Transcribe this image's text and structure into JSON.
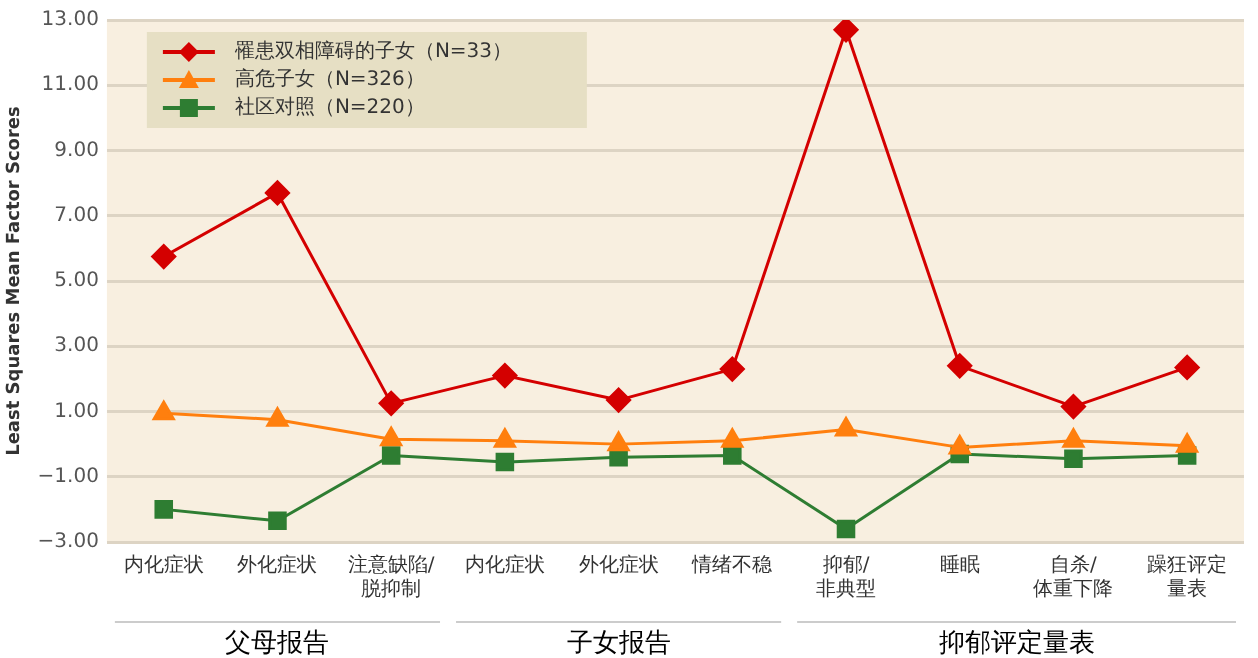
{
  "chart_data": {
    "type": "line",
    "ylabel": "Least Squares Mean Factor Scores",
    "categories": [
      "内化症状",
      "外化症状",
      "注意缺陷/脱抑制",
      "内化症状",
      "外化症状",
      "情绪不稳",
      "抑郁/非典型",
      "睡眠",
      "自杀/体重下降",
      "躁狂评定量表"
    ],
    "series": [
      {
        "name": "罹患双相障碍的子女（N=33）",
        "color": "#d40000",
        "marker": "diamond",
        "values": [
          5.75,
          7.7,
          1.25,
          2.1,
          1.35,
          2.3,
          12.7,
          2.4,
          1.15,
          2.35
        ]
      },
      {
        "name": "高危子女（N=326）",
        "color": "#ff7f0e",
        "marker": "triangle",
        "values": [
          0.95,
          0.75,
          0.15,
          0.1,
          0.0,
          0.1,
          0.45,
          -0.1,
          0.1,
          -0.05
        ]
      },
      {
        "name": "社区对照（N=220）",
        "color": "#2e7d32",
        "marker": "square",
        "values": [
          -2.0,
          -2.35,
          -0.35,
          -0.55,
          -0.4,
          -0.35,
          -2.6,
          -0.3,
          -0.45,
          -0.35
        ]
      }
    ],
    "ylim": [
      -3,
      13
    ],
    "yticks": [
      {
        "value": -3,
        "label": "−3.00"
      },
      {
        "value": -1,
        "label": "−1.00"
      },
      {
        "value": 1,
        "label": "1.00"
      },
      {
        "value": 3,
        "label": "3.00"
      },
      {
        "value": 5,
        "label": "5.00"
      },
      {
        "value": 7,
        "label": "7.00"
      },
      {
        "value": 9,
        "label": "9.00"
      },
      {
        "value": 11,
        "label": "11.00"
      },
      {
        "value": 13,
        "label": "13.00"
      }
    ],
    "annotations": [
      "父母报告",
      "子女报告",
      "抑郁评定量表"
    ],
    "grid": "y",
    "legend": "top left",
    "line_style": "solid"
  }
}
